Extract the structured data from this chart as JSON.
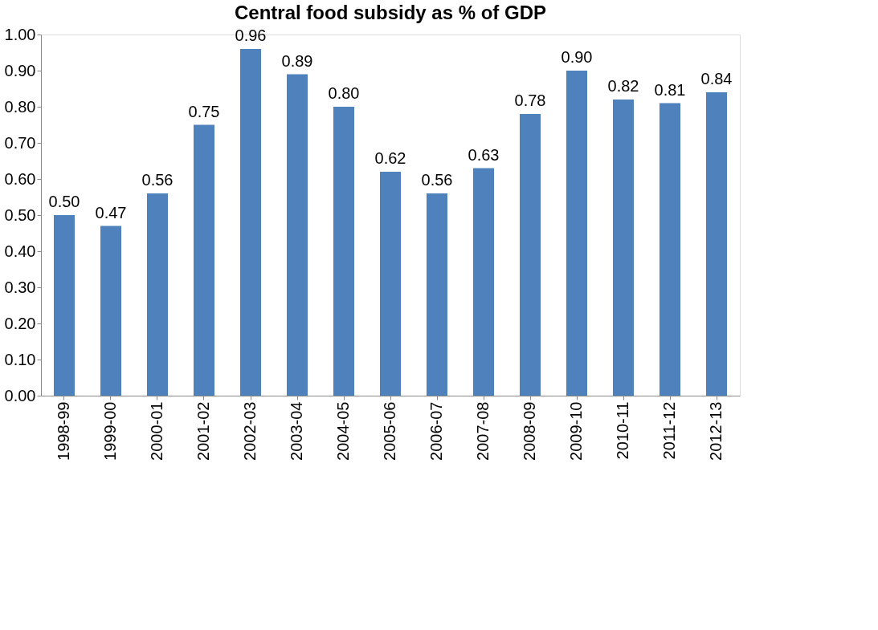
{
  "chart_data": {
    "type": "bar",
    "title": "Central food subsidy as % of GDP",
    "categories": [
      "1998-99",
      "1999-00",
      "2000-01",
      "2001-02",
      "2002-03",
      "2003-04",
      "2004-05",
      "2005-06",
      "2006-07",
      "2007-08",
      "2008-09",
      "2009-10",
      "2010-11",
      "2011-12",
      "2012-13"
    ],
    "values": [
      0.5,
      0.47,
      0.56,
      0.75,
      0.96,
      0.89,
      0.8,
      0.62,
      0.56,
      0.63,
      0.78,
      0.9,
      0.82,
      0.81,
      0.84
    ],
    "value_labels": [
      "0.50",
      "0.47",
      "0.56",
      "0.75",
      "0.96",
      "0.89",
      "0.80",
      "0.62",
      "0.56",
      "0.63",
      "0.78",
      "0.90",
      "0.82",
      "0.81",
      "0.84"
    ],
    "color": "#4f81bd",
    "ylim": [
      0,
      1
    ],
    "yticks": [
      {
        "value": 0,
        "label": "0.00"
      },
      {
        "value": 0.1,
        "label": "0.10"
      },
      {
        "value": 0.2,
        "label": "0.20"
      },
      {
        "value": 0.3,
        "label": "0.30"
      },
      {
        "value": 0.4,
        "label": "0.40"
      },
      {
        "value": 0.5,
        "label": "0.50"
      },
      {
        "value": 0.6,
        "label": "0.60"
      },
      {
        "value": 0.7,
        "label": "0.70"
      },
      {
        "value": 0.8,
        "label": "0.80"
      },
      {
        "value": 0.9,
        "label": "0.90"
      },
      {
        "value": 1,
        "label": "1.00"
      }
    ],
    "grid": false
  }
}
